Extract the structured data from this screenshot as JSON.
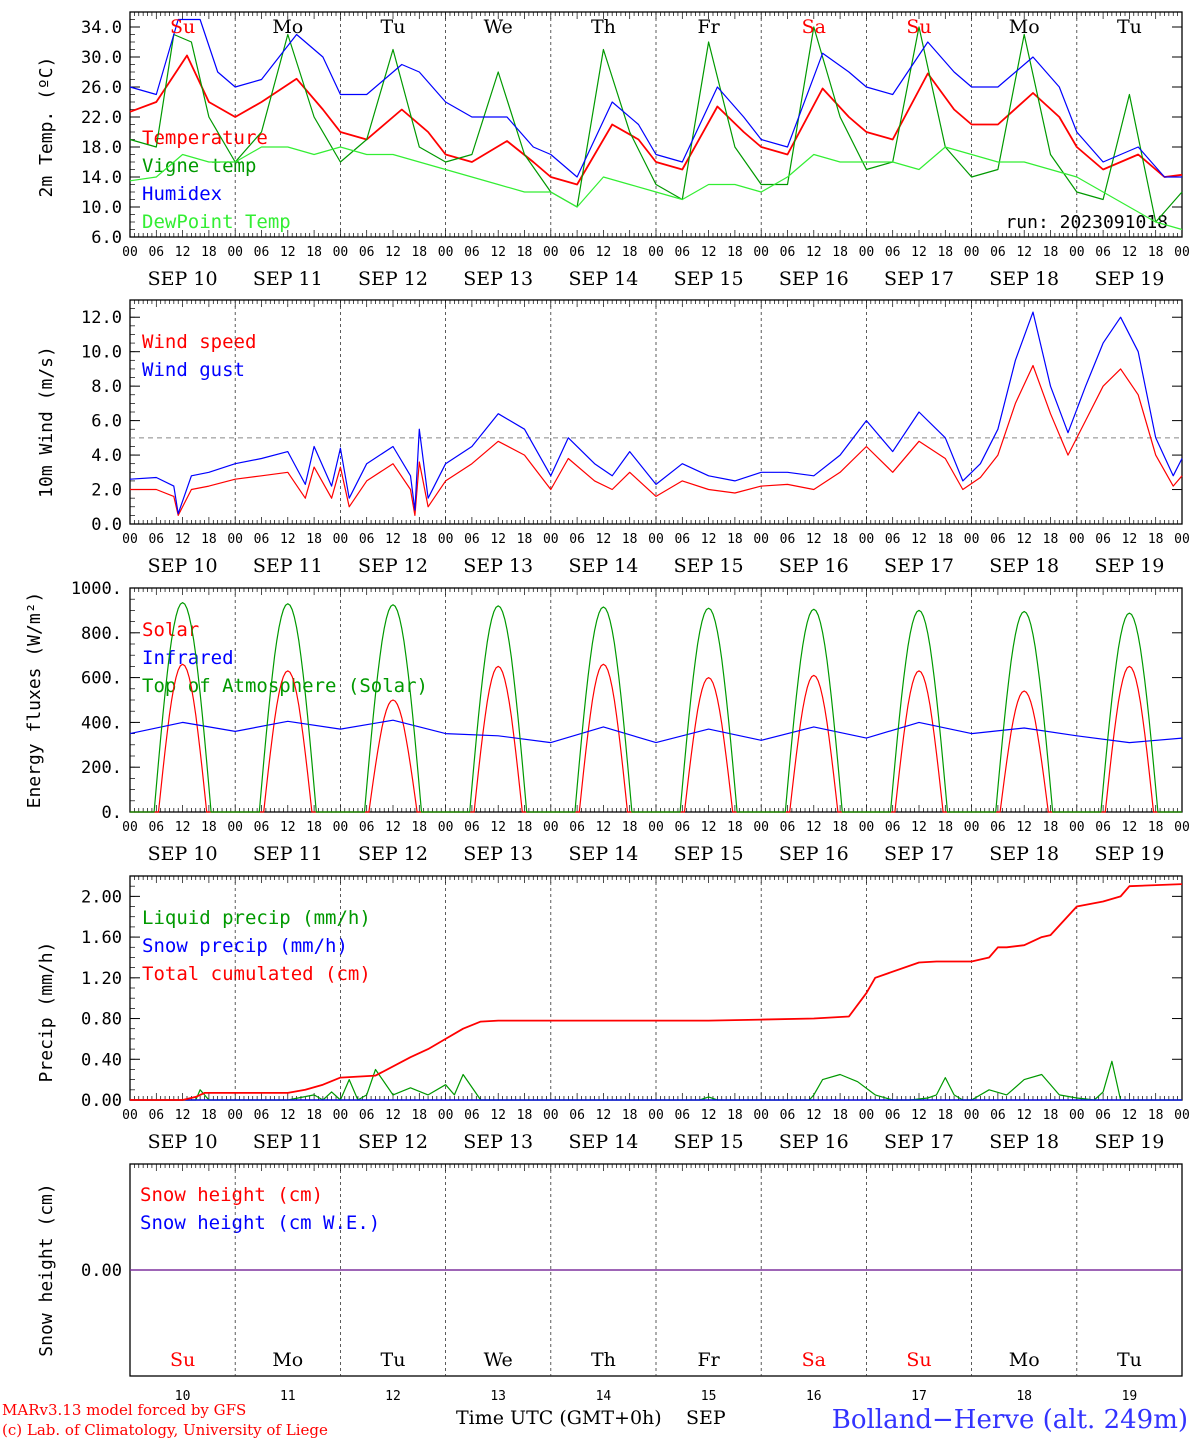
{
  "colors": {
    "red": "#ff0000",
    "green": "#009900",
    "blue": "#0000ff",
    "lightgreen": "#33ee33",
    "purple": "#7a2a9a",
    "black": "#000000"
  },
  "run_label": "run: 2023091018",
  "day_names": [
    {
      "name": "Su",
      "color": "red"
    },
    {
      "name": "Mo",
      "color": "black"
    },
    {
      "name": "Tu",
      "color": "black"
    },
    {
      "name": "We",
      "color": "black"
    },
    {
      "name": "Th",
      "color": "black"
    },
    {
      "name": "Fr",
      "color": "black"
    },
    {
      "name": "Sa",
      "color": "red"
    },
    {
      "name": "Su",
      "color": "red"
    },
    {
      "name": "Mo",
      "color": "black"
    },
    {
      "name": "Tu",
      "color": "black"
    }
  ],
  "date_labels": [
    "SEP 10",
    "SEP 11",
    "SEP 12",
    "SEP 13",
    "SEP 14",
    "SEP 15",
    "SEP 16",
    "SEP 17",
    "SEP 18",
    "SEP 19"
  ],
  "hour_ticks": [
    "00",
    "06",
    "12",
    "18"
  ],
  "hour_end": "00",
  "bottom_day_numbers": [
    "10",
    "11",
    "12",
    "13",
    "14",
    "15",
    "16",
    "17",
    "18",
    "19"
  ],
  "footer": {
    "credit_1": "MARv3.13 model forced by GFS",
    "credit_2": "(c) Lab. of Climatology, University of Liege",
    "axis_title": "Time UTC (GMT+0h)",
    "month": "SEP",
    "station": "Bolland−Herve (alt. 249m)"
  },
  "chart_data": [
    {
      "type": "line",
      "ylabel": "2m Temp. (ºC)",
      "ylim": [
        6,
        36
      ],
      "yticks": [
        "6.0",
        "10.0",
        "14.0",
        "18.0",
        "22.0",
        "26.0",
        "30.0",
        "34.0"
      ],
      "x_unit": "hours since SEP 10 00 UTC",
      "series": [
        {
          "name": "Temperature",
          "color": "red",
          "x": [
            0,
            6,
            13,
            18,
            24,
            30,
            38,
            44,
            48,
            54,
            62,
            68,
            72,
            78,
            86,
            92,
            96,
            102,
            110,
            116,
            120,
            126,
            134,
            140,
            144,
            150,
            158,
            164,
            168,
            174,
            182,
            188,
            192,
            198,
            206,
            212,
            216,
            222,
            230,
            236,
            240
          ],
          "y": [
            22.7,
            24,
            30.2,
            24,
            22,
            24,
            27.1,
            23,
            20,
            19,
            23,
            20,
            17,
            16,
            18.8,
            16,
            14,
            13,
            21,
            19,
            16,
            15,
            23.4,
            20,
            18,
            17,
            25.8,
            22,
            20,
            19,
            27.8,
            23,
            21,
            21,
            25.2,
            22,
            18,
            15,
            17,
            14,
            14.3
          ]
        },
        {
          "name": "Vigne temp",
          "color": "green",
          "x": [
            0,
            6,
            10,
            14,
            18,
            24,
            30,
            36,
            42,
            48,
            54,
            60,
            66,
            72,
            78,
            84,
            90,
            96,
            102,
            108,
            114,
            120,
            126,
            132,
            138,
            144,
            150,
            156,
            162,
            168,
            174,
            180,
            186,
            192,
            198,
            204,
            210,
            216,
            222,
            228,
            234,
            240
          ],
          "y": [
            19,
            18,
            33,
            32,
            22,
            16,
            20,
            33,
            22,
            16,
            19,
            31,
            18,
            16,
            17,
            28,
            17,
            12,
            10,
            31,
            20,
            13,
            11,
            32,
            18,
            13,
            13,
            34,
            22,
            15,
            16,
            34,
            18,
            14,
            15,
            33,
            17,
            12,
            11,
            25,
            8,
            12
          ]
        },
        {
          "name": "Humidex",
          "color": "blue",
          "x": [
            0,
            6,
            11,
            16,
            20,
            24,
            30,
            38,
            44,
            48,
            54,
            62,
            66,
            72,
            78,
            86,
            92,
            96,
            102,
            110,
            116,
            120,
            126,
            134,
            140,
            144,
            150,
            158,
            164,
            168,
            174,
            182,
            188,
            192,
            198,
            206,
            212,
            216,
            222,
            230,
            236,
            240
          ],
          "y": [
            26,
            25,
            35,
            35,
            28,
            26,
            27,
            33,
            30,
            25,
            25,
            29,
            28,
            24,
            22,
            22,
            18,
            17,
            14,
            24,
            21,
            17,
            16,
            26,
            22,
            19,
            18,
            30.5,
            28,
            26,
            25,
            32,
            28,
            26,
            26,
            30,
            26,
            20,
            16,
            18,
            14,
            14
          ]
        },
        {
          "name": "DewPoint Temp",
          "color": "lightgreen",
          "x": [
            0,
            6,
            12,
            18,
            24,
            30,
            36,
            42,
            48,
            54,
            60,
            66,
            72,
            78,
            84,
            90,
            96,
            102,
            108,
            114,
            120,
            126,
            132,
            138,
            144,
            150,
            156,
            162,
            168,
            174,
            180,
            186,
            192,
            198,
            204,
            210,
            216,
            222,
            228,
            234,
            240
          ],
          "y": [
            13.5,
            14,
            17,
            16,
            16,
            18,
            18,
            17,
            18,
            17,
            17,
            16,
            15,
            14,
            13,
            12,
            12,
            10,
            14,
            13,
            12,
            11,
            13,
            13,
            12,
            14,
            17,
            16,
            16,
            16,
            15,
            18,
            17,
            16,
            16,
            15,
            14,
            12,
            10,
            8,
            7
          ]
        }
      ]
    },
    {
      "type": "line",
      "ylabel": "10m Wind (m/s)",
      "ylim": [
        0,
        13
      ],
      "yticks": [
        "0.0",
        "2.0",
        "4.0",
        "6.0",
        "8.0",
        "10.0",
        "12.0"
      ],
      "ref_line": 5,
      "series": [
        {
          "name": "Wind speed",
          "color": "red",
          "x": [
            0,
            6,
            10,
            11,
            14,
            18,
            24,
            30,
            36,
            40,
            42,
            46,
            48,
            50,
            54,
            60,
            64,
            65,
            66,
            68,
            72,
            78,
            84,
            90,
            96,
            100,
            106,
            110,
            114,
            120,
            126,
            132,
            138,
            144,
            150,
            156,
            162,
            168,
            174,
            180,
            186,
            190,
            194,
            198,
            202,
            206,
            210,
            214,
            218,
            222,
            226,
            230,
            234,
            238,
            240
          ],
          "y": [
            2,
            2,
            1.6,
            0.5,
            2,
            2.2,
            2.6,
            2.8,
            3,
            1.5,
            3.3,
            1.5,
            3.3,
            1,
            2.5,
            3.5,
            2,
            0.5,
            3.6,
            1,
            2.5,
            3.5,
            4.8,
            4,
            2,
            3.8,
            2.5,
            2,
            3,
            1.6,
            2.5,
            2,
            1.8,
            2.2,
            2.3,
            2,
            3,
            4.5,
            3,
            4.8,
            3.8,
            2,
            2.7,
            4,
            7,
            9.2,
            6.4,
            4,
            6,
            8,
            9,
            7.5,
            4,
            2.2,
            2.8
          ]
        },
        {
          "name": "Wind gust",
          "color": "blue",
          "x": [
            0,
            6,
            10,
            11,
            14,
            18,
            24,
            30,
            36,
            40,
            42,
            46,
            48,
            50,
            54,
            60,
            64,
            65,
            66,
            68,
            72,
            78,
            84,
            90,
            96,
            100,
            106,
            110,
            114,
            120,
            126,
            132,
            138,
            144,
            150,
            156,
            162,
            168,
            174,
            180,
            186,
            190,
            194,
            198,
            202,
            206,
            210,
            214,
            218,
            222,
            226,
            230,
            234,
            238,
            240
          ],
          "y": [
            2.6,
            2.7,
            2.2,
            0.6,
            2.8,
            3,
            3.5,
            3.8,
            4.2,
            2.3,
            4.5,
            2.2,
            4.4,
            1.5,
            3.5,
            4.5,
            2.8,
            0.8,
            5.5,
            1.5,
            3.5,
            4.5,
            6.4,
            5.5,
            2.8,
            5,
            3.5,
            2.8,
            4.2,
            2.3,
            3.5,
            2.8,
            2.5,
            3,
            3,
            2.8,
            4,
            6,
            4.2,
            6.5,
            5,
            2.5,
            3.5,
            5.5,
            9.5,
            12.3,
            8,
            5.3,
            8,
            10.5,
            12,
            10,
            5,
            2.8,
            3.8
          ]
        }
      ]
    },
    {
      "type": "line",
      "ylabel": "Energy fluxes (W/m²)",
      "ylim": [
        0,
        1000
      ],
      "yticks": [
        "0.",
        "200.",
        "400.",
        "600.",
        "800.",
        "1000."
      ],
      "series": [
        {
          "name": "Solar",
          "color": "red",
          "peaks": [
            660,
            630,
            500,
            650,
            660,
            600,
            610,
            630,
            540,
            650
          ]
        },
        {
          "name": "Infrared",
          "color": "blue",
          "x": [
            0,
            12,
            24,
            36,
            48,
            60,
            72,
            84,
            96,
            108,
            120,
            132,
            144,
            156,
            168,
            180,
            192,
            204,
            216,
            228,
            240
          ],
          "y": [
            350,
            400,
            360,
            405,
            370,
            410,
            350,
            340,
            310,
            380,
            310,
            370,
            320,
            380,
            330,
            400,
            350,
            375,
            340,
            310,
            330
          ]
        },
        {
          "name": "Top of Atmosphere (Solar)",
          "color": "green",
          "peaks": [
            935,
            930,
            925,
            920,
            915,
            910,
            905,
            900,
            895,
            888
          ]
        }
      ]
    },
    {
      "type": "line",
      "ylabel": "Precip (mm/h)",
      "ylim": [
        0,
        2.2
      ],
      "yticks": [
        "0.00",
        "0.40",
        "0.80",
        "1.20",
        "1.60",
        "2.00"
      ],
      "series": [
        {
          "name": "Liquid precip (mm/h)",
          "color": "green",
          "x": [
            0,
            15,
            16,
            17,
            18,
            36,
            42,
            44,
            46,
            48,
            50,
            52,
            54,
            56,
            60,
            64,
            68,
            72,
            74,
            76,
            80,
            84,
            88,
            92,
            130,
            132,
            134,
            155,
            156,
            158,
            162,
            166,
            170,
            174,
            178,
            182,
            184,
            186,
            188,
            190,
            192,
            196,
            200,
            204,
            208,
            212,
            216,
            220,
            222,
            224,
            226,
            228,
            232,
            240
          ],
          "y": [
            0,
            0,
            0.1,
            0.05,
            0,
            0,
            0.05,
            0,
            0.08,
            0,
            0.2,
            0,
            0.05,
            0.3,
            0.05,
            0.12,
            0.05,
            0.15,
            0.05,
            0.25,
            0,
            0,
            0,
            0,
            0,
            0.03,
            0,
            0,
            0.05,
            0.2,
            0.25,
            0.18,
            0.05,
            0,
            0,
            0.02,
            0.05,
            0.22,
            0.05,
            0,
            0,
            0.1,
            0.05,
            0.2,
            0.25,
            0.05,
            0.02,
            0,
            0.08,
            0.38,
            0,
            0,
            0,
            0
          ]
        },
        {
          "name": "Snow precip (mm/h)",
          "color": "blue",
          "x": [
            0,
            240
          ],
          "y": [
            0,
            0
          ]
        },
        {
          "name": "Total cumulated (cm)",
          "color": "red",
          "x": [
            0,
            12,
            15,
            17,
            24,
            36,
            40,
            44,
            48,
            56,
            64,
            68,
            72,
            76,
            80,
            84,
            96,
            108,
            120,
            132,
            144,
            156,
            160,
            164,
            168,
            170,
            180,
            184,
            188,
            192,
            196,
            198,
            200,
            204,
            208,
            210,
            216,
            222,
            226,
            228,
            240
          ],
          "y": [
            0,
            0,
            0.03,
            0.07,
            0.07,
            0.07,
            0.1,
            0.15,
            0.22,
            0.24,
            0.42,
            0.5,
            0.6,
            0.7,
            0.77,
            0.78,
            0.78,
            0.78,
            0.78,
            0.78,
            0.79,
            0.8,
            0.81,
            0.82,
            1.05,
            1.2,
            1.35,
            1.36,
            1.36,
            1.36,
            1.4,
            1.5,
            1.5,
            1.52,
            1.6,
            1.62,
            1.9,
            1.95,
            2,
            2.1,
            2.12
          ]
        }
      ]
    },
    {
      "type": "line",
      "ylabel": "Snow height (cm)",
      "ylim": [
        -1,
        1
      ],
      "yticks": [
        "0.00"
      ],
      "series": [
        {
          "name": "Snow height (cm)",
          "color": "red",
          "x": [
            0,
            240
          ],
          "y": [
            0,
            0
          ]
        },
        {
          "name": "Snow height (cm W.E.)",
          "color": "blue",
          "x": [
            0,
            240
          ],
          "y": [
            0,
            0
          ]
        }
      ]
    }
  ]
}
